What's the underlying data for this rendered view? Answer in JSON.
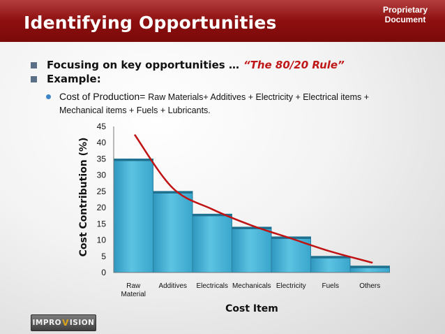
{
  "header": {
    "title": "Identifying Opportunities",
    "badge_line1": "Proprietary",
    "badge_line2": "Document"
  },
  "bullets": [
    {
      "text": "Focusing on key opportunities … ",
      "highlight": "“The 80/20 Rule”"
    },
    {
      "text": "Example:"
    }
  ],
  "sub_bullet": {
    "lead": "Cost of Production",
    "eq": "= ",
    "line1_rest": "Raw Materials+ Additives + Electricity + Electrical items +",
    "line2": "Mechanical items +  Fuels + Lubricants."
  },
  "logo": {
    "left": "IMPRO",
    "mark": "V",
    "right": "ISION"
  },
  "colors": {
    "header": "#8e0f0f",
    "bar": "#4ab3d6",
    "bar_edge": "#2a7fa0",
    "curve": "#c01414",
    "bullet_square": "#5b6f86",
    "sub_bullet_dot": "#3f86c8"
  },
  "chart_data": {
    "type": "bar",
    "categories": [
      "Raw\nMaterial",
      "Additives",
      "Electricals",
      "Mechanicals",
      "Electricity",
      "Fuels",
      "Others"
    ],
    "values": [
      35,
      25,
      18,
      14,
      11,
      5,
      2
    ],
    "trend_curve": [
      42.5,
      26,
      19.5,
      14.5,
      10.5,
      6.5,
      3
    ],
    "xlabel": "Cost Item",
    "ylabel": "Cost Contribution (%)",
    "ylim": [
      0,
      45
    ],
    "yticks": [
      0,
      5,
      10,
      15,
      20,
      25,
      30,
      35,
      40,
      45
    ],
    "grid": false,
    "legend": "none"
  }
}
